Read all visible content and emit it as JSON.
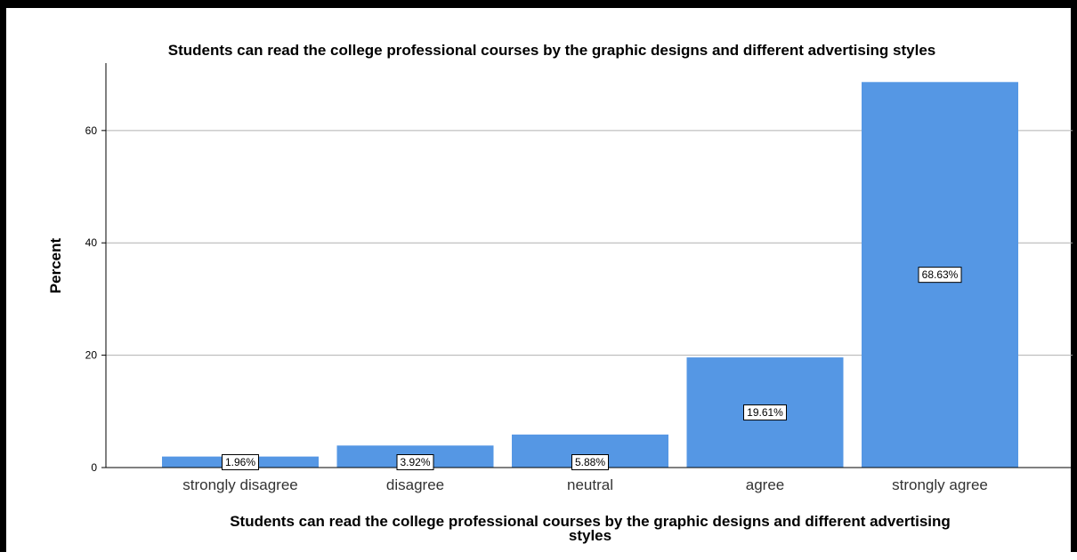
{
  "chart_data": {
    "type": "bar",
    "title": "Students can read the college professional courses by the graphic designs and different advertising styles",
    "xlabel_lines": [
      "Students can read the college professional courses by the graphic designs and different advertising",
      "styles"
    ],
    "ylabel": "Percent",
    "categories": [
      "strongly disagree",
      "disagree",
      "neutral",
      "agree",
      "strongly agree"
    ],
    "values": [
      1.96,
      3.92,
      5.88,
      19.61,
      68.63
    ],
    "data_labels": [
      "1.96%",
      "3.92%",
      "5.88%",
      "19.61%",
      "68.63%"
    ],
    "yticks": [
      0,
      20,
      40,
      60
    ],
    "ylim": [
      0,
      72
    ],
    "grid": true,
    "bar_color": "#5597e4"
  }
}
